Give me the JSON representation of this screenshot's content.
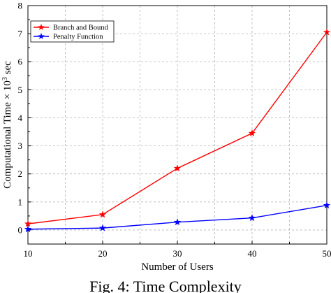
{
  "chart_data": {
    "type": "line",
    "xlabel": "Number of Users",
    "ylabel": "Computational Time × 10",
    "ylabel_sup": "3",
    "ylabel_unit": " sec",
    "x": [
      10,
      20,
      30,
      40,
      50
    ],
    "xlim": [
      10,
      50
    ],
    "ylim": [
      -0.5,
      8
    ],
    "xticks": [
      10,
      20,
      30,
      40,
      50
    ],
    "yticks": [
      0,
      1,
      2,
      3,
      4,
      5,
      6,
      7,
      8
    ],
    "grid": true,
    "legend_position": "top-left",
    "series": [
      {
        "name": "Branch and Bound",
        "color": "#ff0000",
        "marker": "star",
        "values": [
          0.22,
          0.55,
          2.2,
          3.45,
          7.05
        ]
      },
      {
        "name": "Penalty Function",
        "color": "#0000ff",
        "marker": "star",
        "values": [
          0.03,
          0.07,
          0.28,
          0.43,
          0.88
        ]
      }
    ]
  },
  "caption": "Fig. 4: Time Complexity"
}
